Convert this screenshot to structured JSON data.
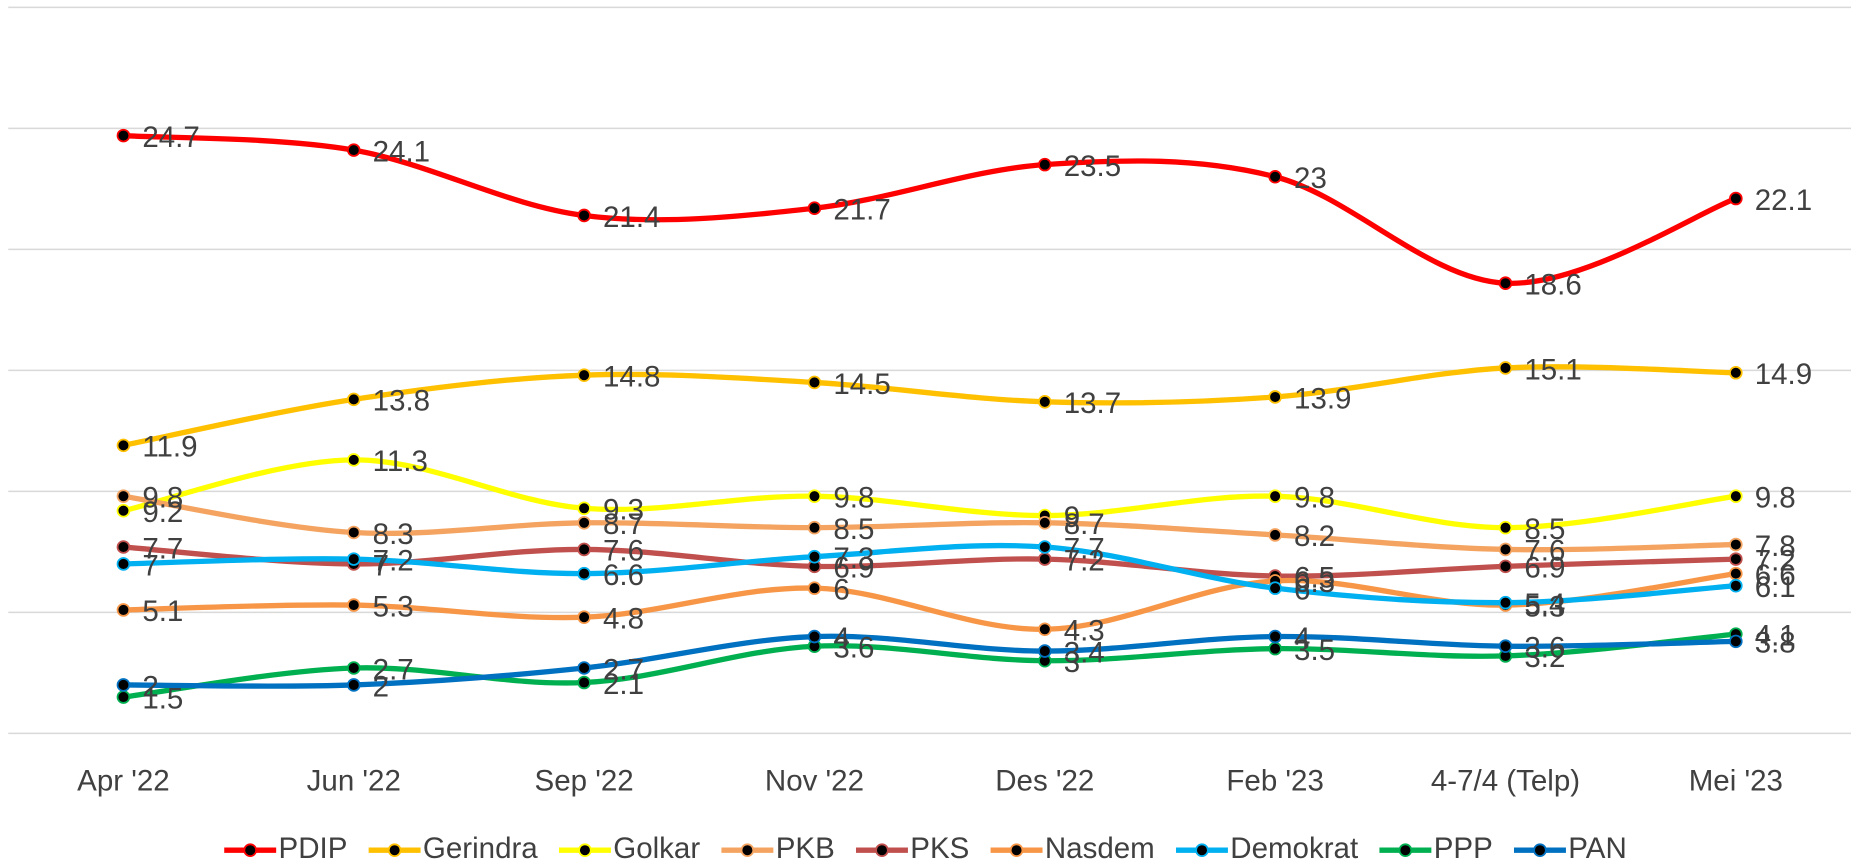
{
  "chart_data": {
    "type": "line",
    "categories": [
      "Apr '22",
      "Jun '22",
      "Sep '22",
      "Nov '22",
      "Des '22",
      "Feb '23",
      "4-7/4 (Telp)",
      "Mei '23"
    ],
    "series": [
      {
        "name": "PDIP",
        "color": "#ff0000",
        "values": [
          24.7,
          24.1,
          21.4,
          21.7,
          23.5,
          23.0,
          18.6,
          22.1
        ]
      },
      {
        "name": "Gerindra",
        "color": "#ffc000",
        "values": [
          11.9,
          13.8,
          14.8,
          14.5,
          13.7,
          13.9,
          15.1,
          14.9
        ]
      },
      {
        "name": "Golkar",
        "color": "#ffff00",
        "values": [
          9.2,
          11.3,
          9.3,
          9.8,
          9.0,
          9.8,
          8.5,
          9.8
        ]
      },
      {
        "name": "PKB",
        "color": "#f4a460",
        "values": [
          9.8,
          8.3,
          8.7,
          8.5,
          8.7,
          8.2,
          7.6,
          7.8
        ]
      },
      {
        "name": "PKS",
        "color": "#c0504d",
        "values": [
          7.7,
          7.0,
          7.6,
          6.9,
          7.2,
          6.5,
          6.9,
          7.2
        ]
      },
      {
        "name": "Nasdem",
        "color": "#f79646",
        "values": [
          5.1,
          5.3,
          4.8,
          6.0,
          4.3,
          6.3,
          5.3,
          6.6
        ]
      },
      {
        "name": "Demokrat",
        "color": "#00b0f0",
        "values": [
          7.0,
          7.2,
          6.6,
          7.3,
          7.7,
          6.0,
          5.4,
          6.1
        ]
      },
      {
        "name": "PPP",
        "color": "#00b050",
        "values": [
          1.5,
          2.7,
          2.1,
          3.6,
          3.0,
          3.5,
          3.2,
          4.1
        ]
      },
      {
        "name": "PAN",
        "color": "#0070c0",
        "values": [
          2.0,
          2.0,
          2.7,
          4.0,
          3.4,
          4.0,
          3.6,
          3.8
        ]
      }
    ],
    "ylim": [
      0,
      30
    ],
    "yticks": [
      0,
      5,
      10,
      15,
      20,
      25,
      30
    ],
    "grid": true,
    "legend": "bottom",
    "smooth": true
  }
}
